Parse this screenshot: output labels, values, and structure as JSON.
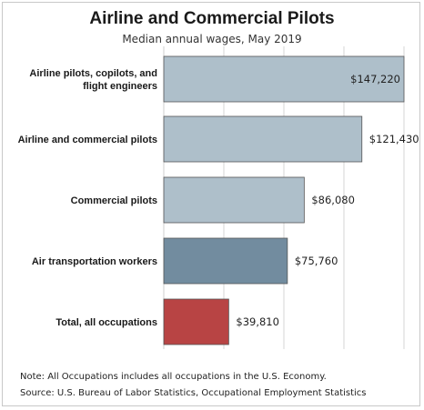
{
  "chart_data": {
    "type": "bar",
    "orientation": "horizontal",
    "title": "Airline and Commercial Pilots",
    "subtitle": "Median annual wages, May 2019",
    "categories": [
      "Airline pilots, copilots, and flight engineers",
      "Airline and commercial pilots",
      "Commercial pilots",
      "Air transportation workers",
      "Total, all occupations"
    ],
    "category_lines": [
      [
        "Airline pilots, copilots, and",
        "flight engineers"
      ],
      [
        "Airline and commercial pilots"
      ],
      [
        "Commercial pilots"
      ],
      [
        "Air transportation workers"
      ],
      [
        "Total, all occupations"
      ]
    ],
    "values": [
      147220,
      121430,
      86080,
      75760,
      39810
    ],
    "value_labels": [
      "$147,220",
      "$121,430",
      "$86,080",
      "$75,760",
      "$39,810"
    ],
    "bar_colors": [
      "#aebfca",
      "#aebfca",
      "#aebfca",
      "#728c9f",
      "#b84444"
    ],
    "xlim": [
      0,
      147220
    ],
    "grid": true,
    "xlabel": "",
    "ylabel": ""
  },
  "notes": {
    "note": "Note: All Occupations includes all occupations in the U.S. Economy.",
    "source": "Source: U.S. Bureau of Labor Statistics, Occupational Employment Statistics"
  }
}
